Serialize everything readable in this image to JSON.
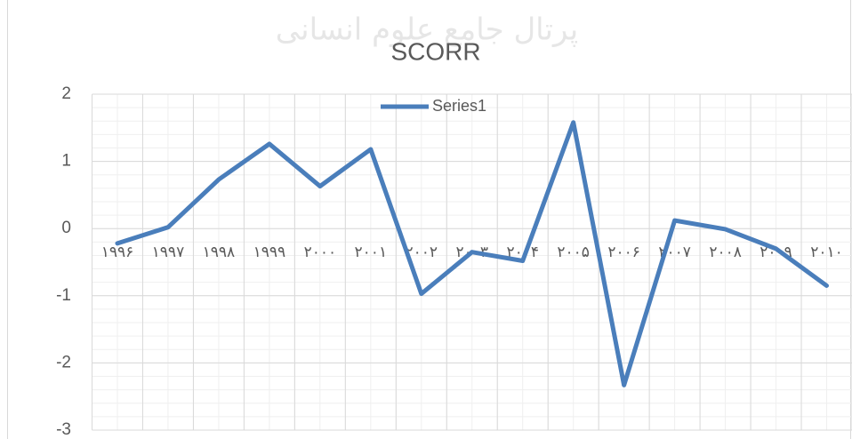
{
  "watermark": "پرتال جامع علوم انسانی",
  "chart_data": {
    "type": "line",
    "title": "SCORR",
    "categories": [
      "۱۹۹۶",
      "۱۹۹۷",
      "۱۹۹۸",
      "۱۹۹۹",
      "۲۰۰۰",
      "۲۰۰۱",
      "۲۰۰۲",
      "۲۰۰۳",
      "۲۰۰۴",
      "۲۰۰۵",
      "۲۰۰۶",
      "۲۰۰۷",
      "۲۰۰۸",
      "۲۰۰۹",
      "۲۰۱۰"
    ],
    "series": [
      {
        "name": "Series1",
        "color": "#4a7ebb",
        "values": [
          -0.22,
          0.02,
          0.73,
          1.26,
          0.63,
          1.18,
          -0.97,
          -0.35,
          -0.48,
          1.58,
          -2.33,
          0.12,
          -0.01,
          -0.3,
          -0.85
        ]
      }
    ],
    "ylim": [
      -3,
      2
    ],
    "yticks": [
      -3,
      -2,
      -1,
      0,
      1,
      2
    ],
    "grid": true,
    "legend": "top"
  }
}
